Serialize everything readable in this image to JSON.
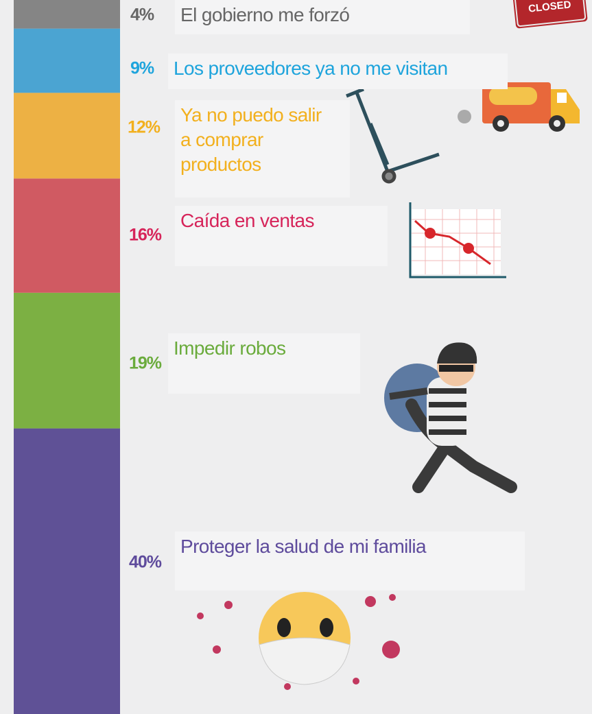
{
  "chart_data": {
    "type": "stacked-bar",
    "categories": [
      "El gobierno me forzó",
      "Los proveedores ya no me visitan",
      "Ya no puedo salir a comprar productos",
      "Caída en ventas",
      "Impedir robos",
      "Proteger la salud de mi familia"
    ],
    "values": [
      4,
      9,
      12,
      16,
      19,
      40
    ],
    "value_labels": [
      "4%",
      "9%",
      "12%",
      "16%",
      "19%",
      "40%"
    ],
    "colors": [
      "#858585",
      "#4ba4d2",
      "#edb144",
      "#d05a62",
      "#7cb043",
      "#5f5196"
    ],
    "label_colors": [
      "#666666",
      "#1ea4dc",
      "#f2b01e",
      "#d6245a",
      "#6aab3c",
      "#5e4b9c"
    ]
  },
  "closed_sign": "CLOSED"
}
